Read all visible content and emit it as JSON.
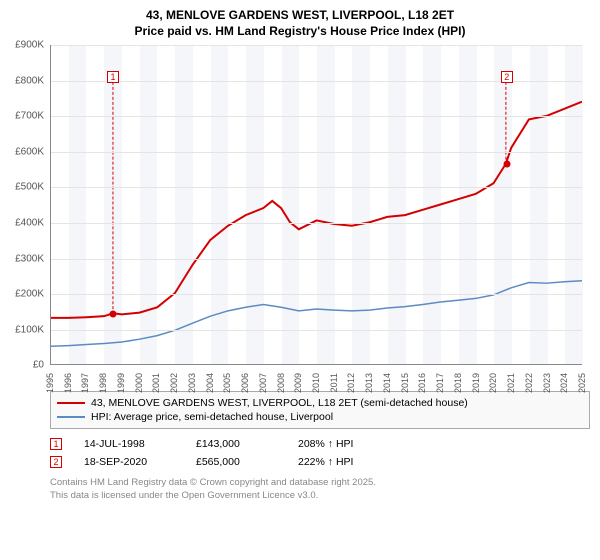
{
  "title_line1": "43, MENLOVE GARDENS WEST, LIVERPOOL, L18 2ET",
  "title_line2": "Price paid vs. HM Land Registry's House Price Index (HPI)",
  "chart": {
    "type": "line",
    "ylim": [
      0,
      900
    ],
    "ytick_step": 100,
    "ytick_labels": [
      "£0",
      "£100K",
      "£200K",
      "£300K",
      "£400K",
      "£500K",
      "£600K",
      "£700K",
      "£800K",
      "£900K"
    ],
    "x_years": [
      1995,
      1996,
      1997,
      1998,
      1999,
      2000,
      2001,
      2002,
      2003,
      2004,
      2005,
      2006,
      2007,
      2008,
      2009,
      2010,
      2011,
      2012,
      2013,
      2014,
      2015,
      2016,
      2017,
      2018,
      2019,
      2020,
      2021,
      2022,
      2023,
      2024,
      2025
    ],
    "background_color": "#ffffff",
    "grid_color": "#e4e4e4",
    "band_color": "#f5f6fa",
    "axis_color": "#888888",
    "series": [
      {
        "name": "price_paid",
        "color": "#d40000",
        "width": 2,
        "points": [
          [
            1995,
            130
          ],
          [
            1996,
            130
          ],
          [
            1997,
            132
          ],
          [
            1998,
            135
          ],
          [
            1998.5,
            143
          ],
          [
            1999,
            140
          ],
          [
            2000,
            145
          ],
          [
            2001,
            160
          ],
          [
            2002,
            200
          ],
          [
            2003,
            280
          ],
          [
            2004,
            350
          ],
          [
            2005,
            390
          ],
          [
            2006,
            420
          ],
          [
            2007,
            440
          ],
          [
            2007.5,
            460
          ],
          [
            2008,
            440
          ],
          [
            2008.5,
            400
          ],
          [
            2009,
            380
          ],
          [
            2010,
            405
          ],
          [
            2011,
            395
          ],
          [
            2012,
            390
          ],
          [
            2013,
            400
          ],
          [
            2014,
            415
          ],
          [
            2015,
            420
          ],
          [
            2016,
            435
          ],
          [
            2017,
            450
          ],
          [
            2018,
            465
          ],
          [
            2019,
            480
          ],
          [
            2020,
            510
          ],
          [
            2020.7,
            565
          ],
          [
            2021,
            610
          ],
          [
            2022,
            690
          ],
          [
            2023,
            700
          ],
          [
            2024,
            720
          ],
          [
            2025,
            740
          ]
        ]
      },
      {
        "name": "hpi",
        "color": "#5b8bc4",
        "width": 1.5,
        "points": [
          [
            1995,
            50
          ],
          [
            1996,
            52
          ],
          [
            1997,
            55
          ],
          [
            1998,
            58
          ],
          [
            1999,
            62
          ],
          [
            2000,
            70
          ],
          [
            2001,
            80
          ],
          [
            2002,
            95
          ],
          [
            2003,
            115
          ],
          [
            2004,
            135
          ],
          [
            2005,
            150
          ],
          [
            2006,
            160
          ],
          [
            2007,
            168
          ],
          [
            2008,
            160
          ],
          [
            2009,
            150
          ],
          [
            2010,
            155
          ],
          [
            2011,
            152
          ],
          [
            2012,
            150
          ],
          [
            2013,
            152
          ],
          [
            2014,
            158
          ],
          [
            2015,
            162
          ],
          [
            2016,
            168
          ],
          [
            2017,
            175
          ],
          [
            2018,
            180
          ],
          [
            2019,
            185
          ],
          [
            2020,
            195
          ],
          [
            2021,
            215
          ],
          [
            2022,
            230
          ],
          [
            2023,
            228
          ],
          [
            2024,
            232
          ],
          [
            2025,
            235
          ]
        ]
      }
    ],
    "markers": [
      {
        "n": "1",
        "x": 1998.5,
        "y": 143,
        "color": "#d40000",
        "box_y": 810
      },
      {
        "n": "2",
        "x": 2020.7,
        "y": 565,
        "color": "#d40000",
        "box_y": 810
      }
    ]
  },
  "legend": [
    {
      "color": "#d40000",
      "label": "43, MENLOVE GARDENS WEST, LIVERPOOL, L18 2ET (semi-detached house)"
    },
    {
      "color": "#5b8bc4",
      "label": "HPI: Average price, semi-detached house, Liverpool"
    }
  ],
  "records": [
    {
      "n": "1",
      "color": "#d40000",
      "date": "14-JUL-1998",
      "price": "£143,000",
      "change": "208% ↑ HPI"
    },
    {
      "n": "2",
      "color": "#d40000",
      "date": "18-SEP-2020",
      "price": "£565,000",
      "change": "222% ↑ HPI"
    }
  ],
  "attribution_line1": "Contains HM Land Registry data © Crown copyright and database right 2025.",
  "attribution_line2": "This data is licensed under the Open Government Licence v3.0."
}
